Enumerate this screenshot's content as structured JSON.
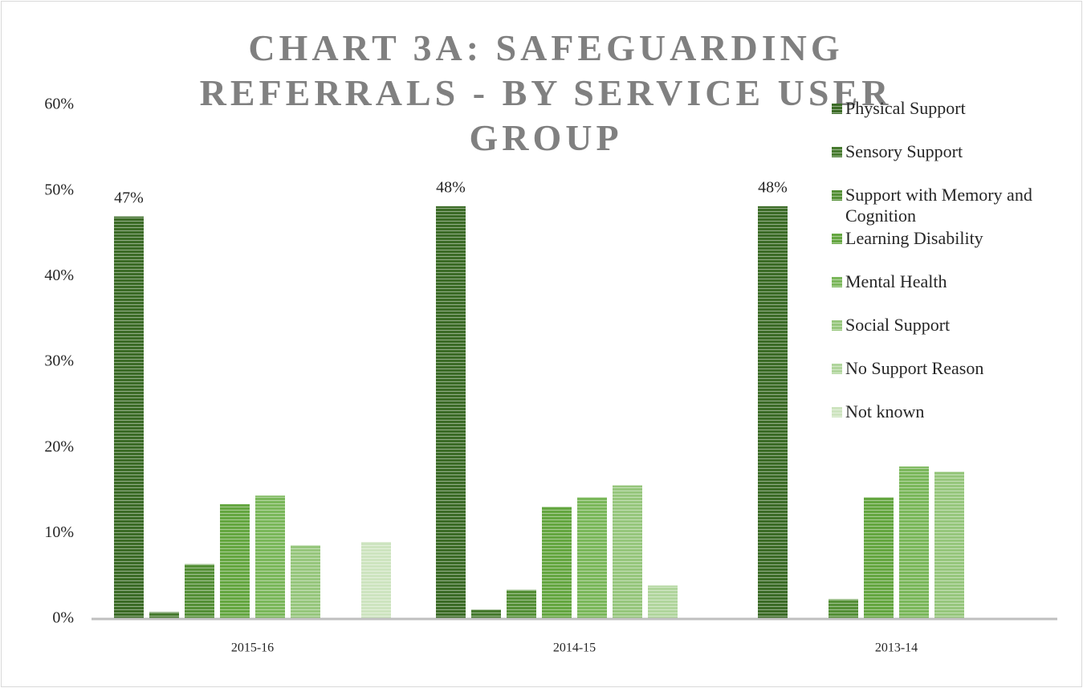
{
  "chart_data": {
    "type": "bar",
    "title": "CHART 3A: SAFEGUARDING REFERRALS - BY SERVICE USER GROUP",
    "categories": [
      "2015-16",
      "2014-15",
      "2013-14"
    ],
    "series": [
      {
        "name": "Physical Support",
        "color": "#3b6b26",
        "values": [
          47,
          48.2,
          48.2
        ],
        "value_labels": [
          "47%",
          "48%",
          "48%"
        ]
      },
      {
        "name": "Sensory Support",
        "color": "#467a2e",
        "values": [
          0.8,
          1.1,
          null
        ]
      },
      {
        "name": "Support with Memory and Cognition",
        "color": "#548f36",
        "values": [
          6.4,
          3.4,
          2.3
        ]
      },
      {
        "name": "Learning Disability",
        "color": "#64a640",
        "values": [
          13.4,
          13.1,
          14.2
        ]
      },
      {
        "name": "Mental Health",
        "color": "#7ab75a",
        "values": [
          14.4,
          14.2,
          17.8
        ]
      },
      {
        "name": "Social Support",
        "color": "#96c67c",
        "values": [
          8.6,
          15.6,
          17.2
        ]
      },
      {
        "name": "No Support Reason",
        "color": "#b0d59c",
        "values": [
          null,
          3.9,
          null
        ]
      },
      {
        "name": "Not known",
        "color": "#cde4bf",
        "values": [
          9.0,
          null,
          null
        ]
      }
    ],
    "ylim": [
      0,
      60
    ],
    "yticks": [
      {
        "value": 0,
        "label": "0%"
      },
      {
        "value": 10,
        "label": "10%"
      },
      {
        "value": 20,
        "label": "20%"
      },
      {
        "value": 30,
        "label": "30%"
      },
      {
        "value": 40,
        "label": "40%"
      },
      {
        "value": 50,
        "label": "50%"
      },
      {
        "value": 60,
        "label": "60%"
      }
    ],
    "legend": "right"
  }
}
